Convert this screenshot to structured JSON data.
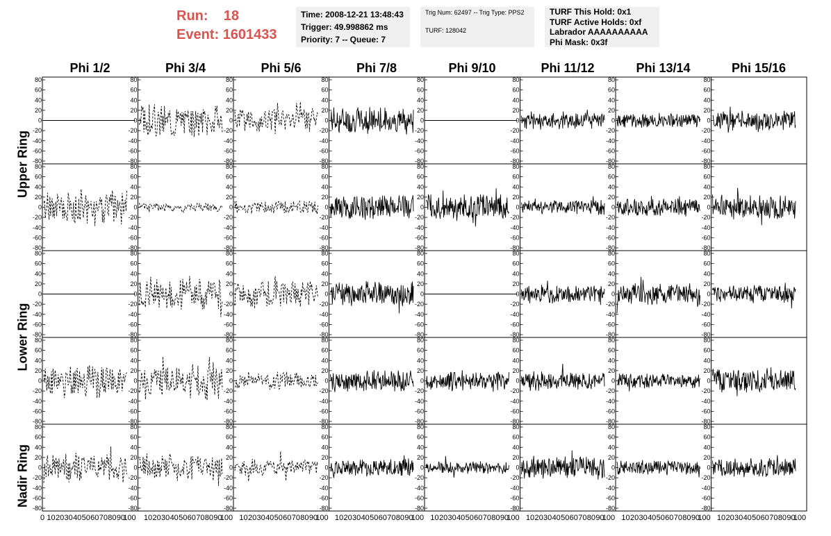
{
  "header": {
    "run_label": "Run:",
    "run_value": "18",
    "event_label": "Event:",
    "event_value": "1601433"
  },
  "info_boxes": [
    {
      "lines": [
        "Time: 2008-12-21 13:48:43",
        "Trigger: 49.998862 ms",
        "Priority: 7 -- Queue: 7"
      ]
    },
    {
      "lines": [
        "Trig Num: 62497 -- Trig Type: PPS2",
        "TURF: 128042"
      ]
    },
    {
      "lines": [
        "TURF This Hold: 0x1",
        "TURF Active Holds: 0xf",
        "Labrador AAAAAAAAAA",
        "Phi Mask: 0x3f"
      ]
    }
  ],
  "columns": [
    "Phi 1/2",
    "Phi 3/4",
    "Phi 5/6",
    "Phi 7/8",
    "Phi 9/10",
    "Phi 11/12",
    "Phi 13/14",
    "Phi 15/16"
  ],
  "rings": [
    "Upper Ring",
    "Lower Ring",
    "Nadir Ring"
  ],
  "chart_data": {
    "type": "line",
    "layout_note": "8 columns x 5 rows of waveform panels",
    "ylim": [
      -80,
      80
    ],
    "y_ticks": [
      "80",
      "60",
      "40",
      "20",
      "0",
      "-20",
      "-40",
      "-60",
      "-80"
    ],
    "xlim": [
      0,
      100
    ],
    "x_tick_labels": [
      "0",
      "10",
      "20",
      "30",
      "40",
      "50",
      "60",
      "70",
      "80",
      "90",
      "100"
    ],
    "x_tick_labels_panel": [
      "10",
      "20",
      "30",
      "40",
      "50",
      "60",
      "70",
      "80",
      "90",
      "100"
    ],
    "panels": [
      [
        {
          "style": "flat"
        },
        {
          "style": "dashed",
          "amp": 28,
          "seed": 3
        },
        {
          "style": "dashed",
          "amp": 22,
          "seed": 5
        },
        {
          "style": "solid",
          "amp": 22,
          "seed": 7
        },
        {
          "style": "flat"
        },
        {
          "style": "solid",
          "amp": 14,
          "seed": 11
        },
        {
          "style": "solid",
          "amp": 12,
          "seed": 13
        },
        {
          "style": "solid",
          "amp": 16,
          "seed": 17
        }
      ],
      [
        {
          "style": "dashed",
          "amp": 30,
          "seed": 19
        },
        {
          "style": "dashed",
          "amp": 8,
          "seed": 23
        },
        {
          "style": "dashed",
          "amp": 12,
          "seed": 29
        },
        {
          "style": "solid",
          "amp": 20,
          "seed": 31
        },
        {
          "style": "solid",
          "amp": 22,
          "seed": 37
        },
        {
          "style": "solid",
          "amp": 12,
          "seed": 41
        },
        {
          "style": "solid",
          "amp": 14,
          "seed": 43
        },
        {
          "style": "solid",
          "amp": 20,
          "seed": 47
        }
      ],
      [
        {
          "style": "flat"
        },
        {
          "style": "dashed",
          "amp": 26,
          "seed": 53
        },
        {
          "style": "dashed",
          "amp": 24,
          "seed": 59
        },
        {
          "style": "solid",
          "amp": 20,
          "seed": 61
        },
        {
          "style": "flat"
        },
        {
          "style": "solid",
          "amp": 14,
          "seed": 67
        },
        {
          "style": "solid",
          "amp": 18,
          "seed": 71
        },
        {
          "style": "solid",
          "amp": 14,
          "seed": 73
        }
      ],
      [
        {
          "style": "dashed",
          "amp": 28,
          "seed": 79
        },
        {
          "style": "dashed",
          "amp": 30,
          "seed": 83
        },
        {
          "style": "dashed",
          "amp": 14,
          "seed": 89
        },
        {
          "style": "solid",
          "amp": 18,
          "seed": 97
        },
        {
          "style": "solid",
          "amp": 16,
          "seed": 101
        },
        {
          "style": "solid",
          "amp": 16,
          "seed": 103
        },
        {
          "style": "solid",
          "amp": 12,
          "seed": 107
        },
        {
          "style": "solid",
          "amp": 20,
          "seed": 109
        }
      ],
      [
        {
          "style": "dashed",
          "amp": 24,
          "seed": 113
        },
        {
          "style": "dashed",
          "amp": 22,
          "seed": 127
        },
        {
          "style": "dashed",
          "amp": 14,
          "seed": 131
        },
        {
          "style": "solid",
          "amp": 14,
          "seed": 137
        },
        {
          "style": "solid",
          "amp": 10,
          "seed": 139
        },
        {
          "style": "solid",
          "amp": 18,
          "seed": 149
        },
        {
          "style": "solid",
          "amp": 12,
          "seed": 151
        },
        {
          "style": "solid",
          "amp": 16,
          "seed": 157
        }
      ]
    ]
  }
}
